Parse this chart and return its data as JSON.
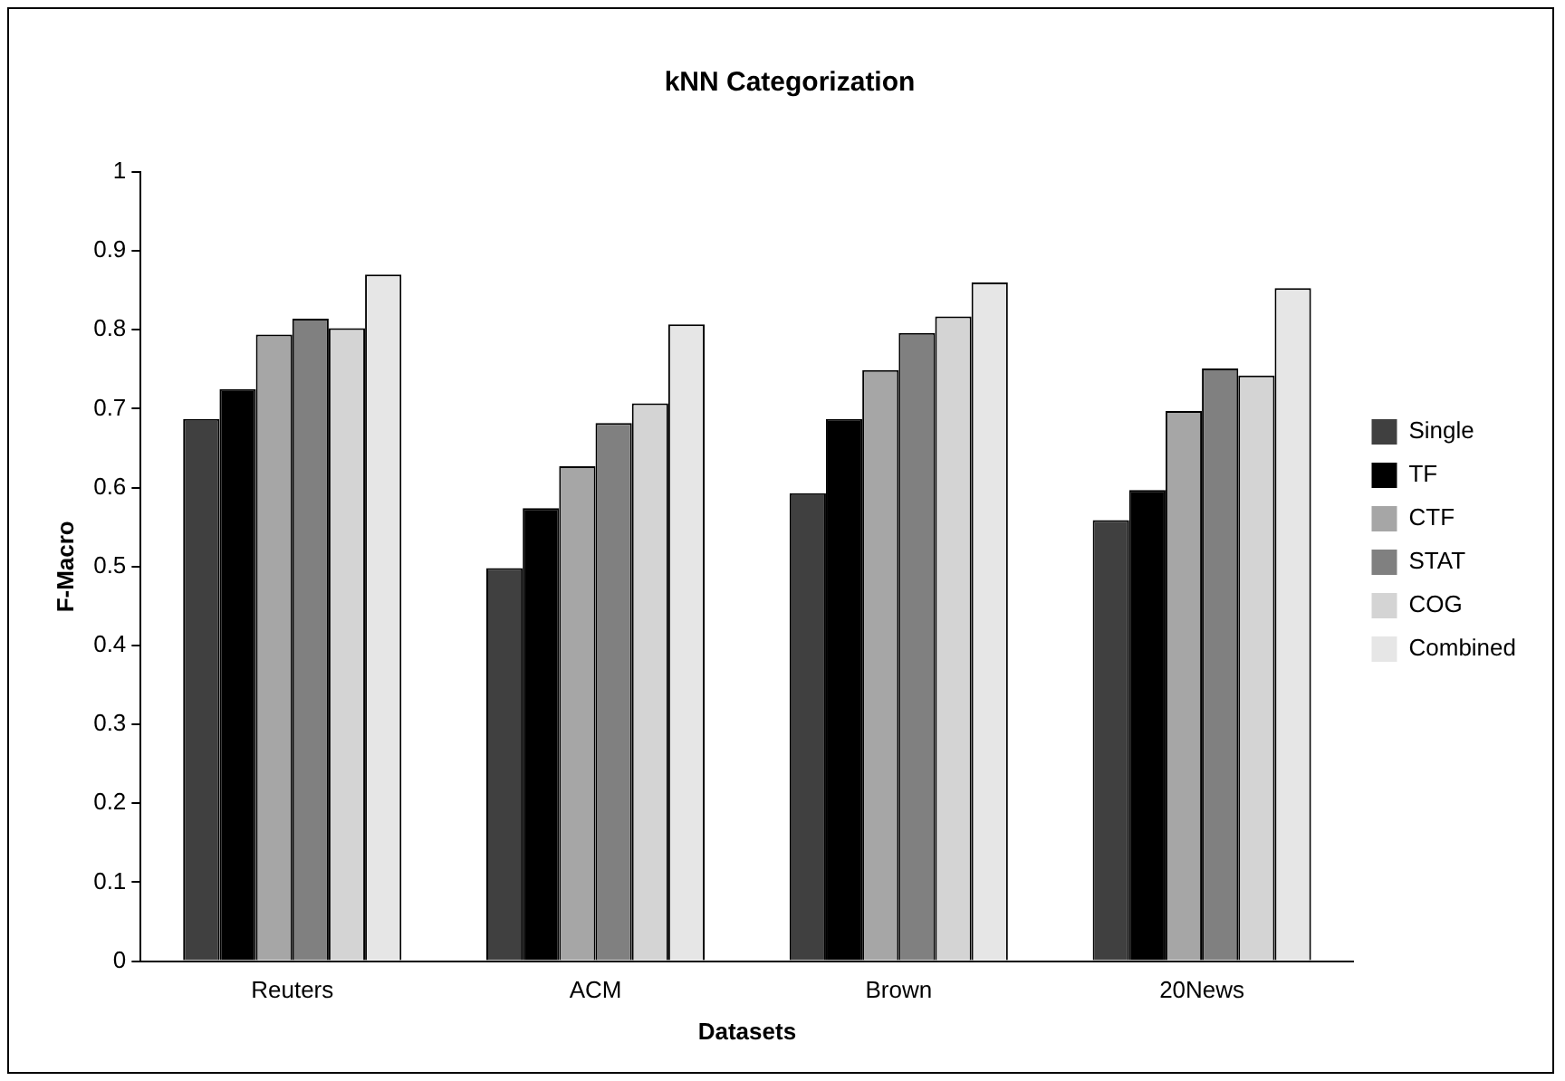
{
  "chart_data": {
    "type": "bar",
    "title": "kNN Categorization",
    "xlabel": "Datasets",
    "ylabel": "F-Macro",
    "categories": [
      "Reuters",
      "ACM",
      "Brown",
      "20News"
    ],
    "series": [
      {
        "name": "Single",
        "color": "#404040",
        "values": [
          0.687,
          0.498,
          0.593,
          0.559
        ]
      },
      {
        "name": "TF",
        "color": "#000000",
        "values": [
          0.725,
          0.574,
          0.687,
          0.597
        ]
      },
      {
        "name": "CTF",
        "color": "#a6a6a6",
        "values": [
          0.794,
          0.627,
          0.749,
          0.697
        ]
      },
      {
        "name": "STAT",
        "color": "#808080",
        "values": [
          0.814,
          0.682,
          0.796,
          0.751
        ]
      },
      {
        "name": "COG",
        "color": "#d4d4d4",
        "values": [
          0.802,
          0.707,
          0.817,
          0.742
        ]
      },
      {
        "name": "Combined",
        "color": "#e6e6e6",
        "values": [
          0.87,
          0.807,
          0.86,
          0.853
        ]
      }
    ],
    "ylim": [
      0,
      1
    ],
    "yticks": [
      0,
      0.1,
      0.2,
      0.3,
      0.4,
      0.5,
      0.6,
      0.7,
      0.8,
      0.9,
      1
    ],
    "grid": false,
    "legend": "right"
  }
}
